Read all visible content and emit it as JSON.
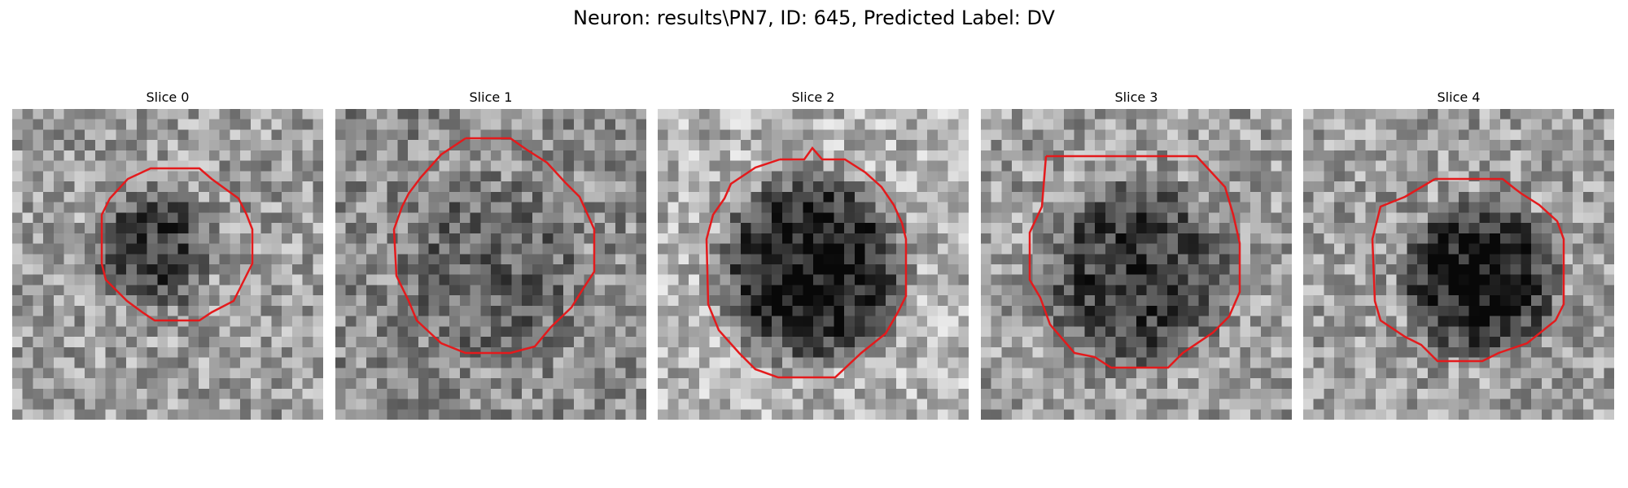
{
  "figure": {
    "title": "Neuron: results\\PN7, ID: 645, Predicted Label: DV"
  },
  "slices": [
    {
      "title": "Slice 0"
    },
    {
      "title": "Slice 1"
    },
    {
      "title": "Slice 2"
    },
    {
      "title": "Slice 3"
    },
    {
      "title": "Slice 4"
    }
  ],
  "colors": {
    "outline": "#e41a1c",
    "colormap": "gray"
  }
}
